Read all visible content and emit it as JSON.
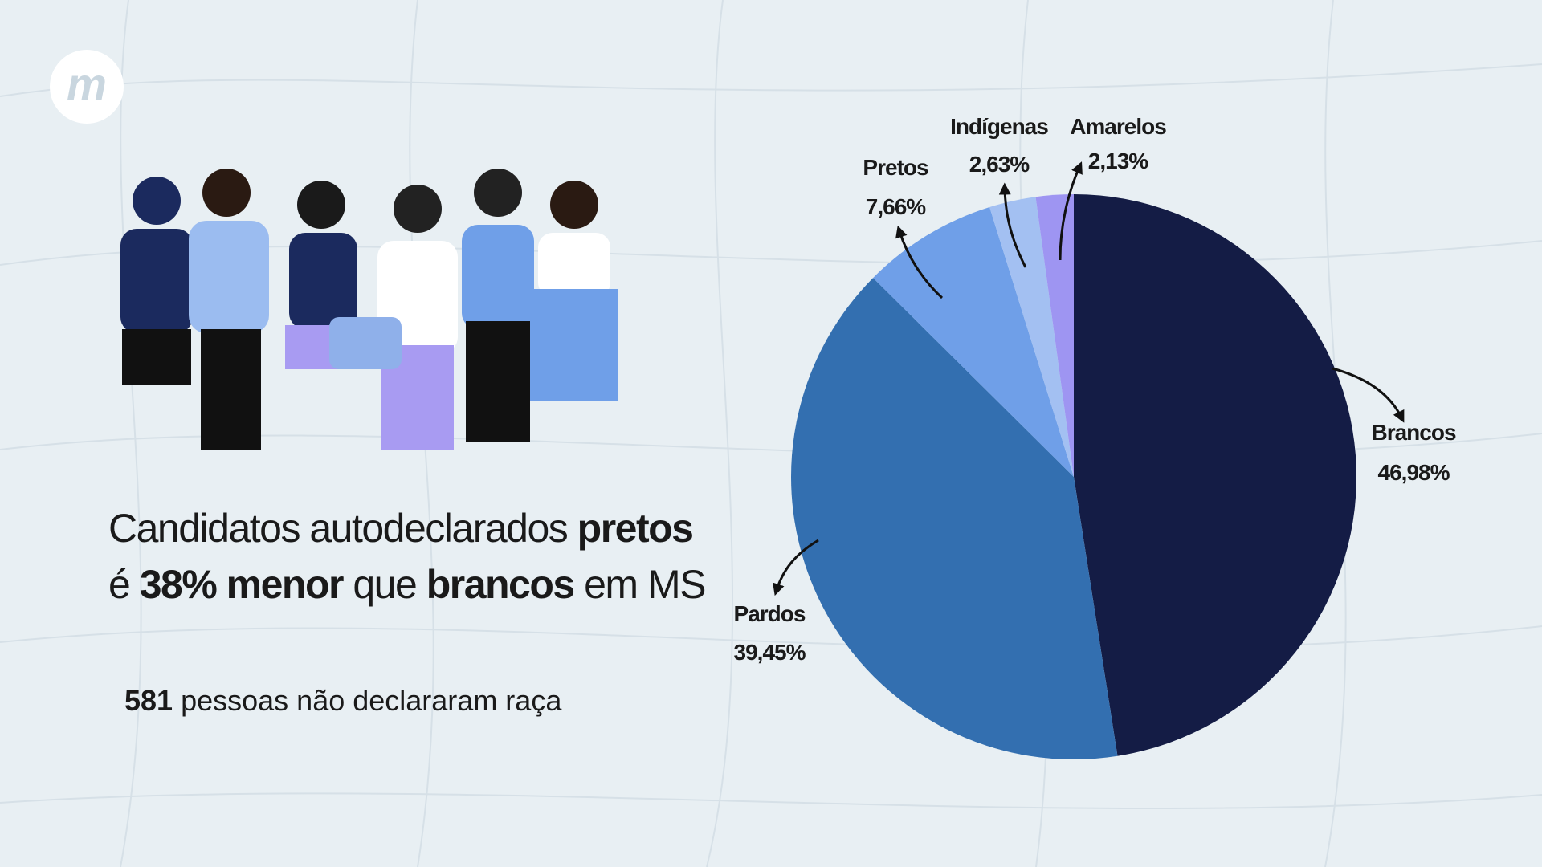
{
  "logo": "m",
  "headline": [
    [
      {
        "text": "Candidatos autodeclarados ",
        "bold": false
      },
      {
        "text": "pretos",
        "bold": true
      }
    ],
    [
      {
        "text": "é ",
        "bold": false
      },
      {
        "text": "38% menor",
        "bold": true
      },
      {
        "text": " que ",
        "bold": false
      },
      {
        "text": "brancos",
        "bold": true
      },
      {
        "text": " em MS",
        "bold": false
      }
    ]
  ],
  "note": [
    {
      "text": "581",
      "bold": true
    },
    {
      "text": " pessoas não declararam raça",
      "bold": false
    }
  ],
  "chart_data": {
    "type": "pie",
    "categories": [
      "Brancos",
      "Pardos",
      "Pretos",
      "Indígenas",
      "Amarelos"
    ],
    "values": [
      46.98,
      39.45,
      7.66,
      2.63,
      2.13
    ],
    "value_labels": [
      "46,98%",
      "39,45%",
      "7,66%",
      "2,63%",
      "2,13%"
    ],
    "colors": [
      "#141c45",
      "#336fb0",
      "#6f9fe8",
      "#a3c0f2",
      "#9e95f2"
    ]
  }
}
